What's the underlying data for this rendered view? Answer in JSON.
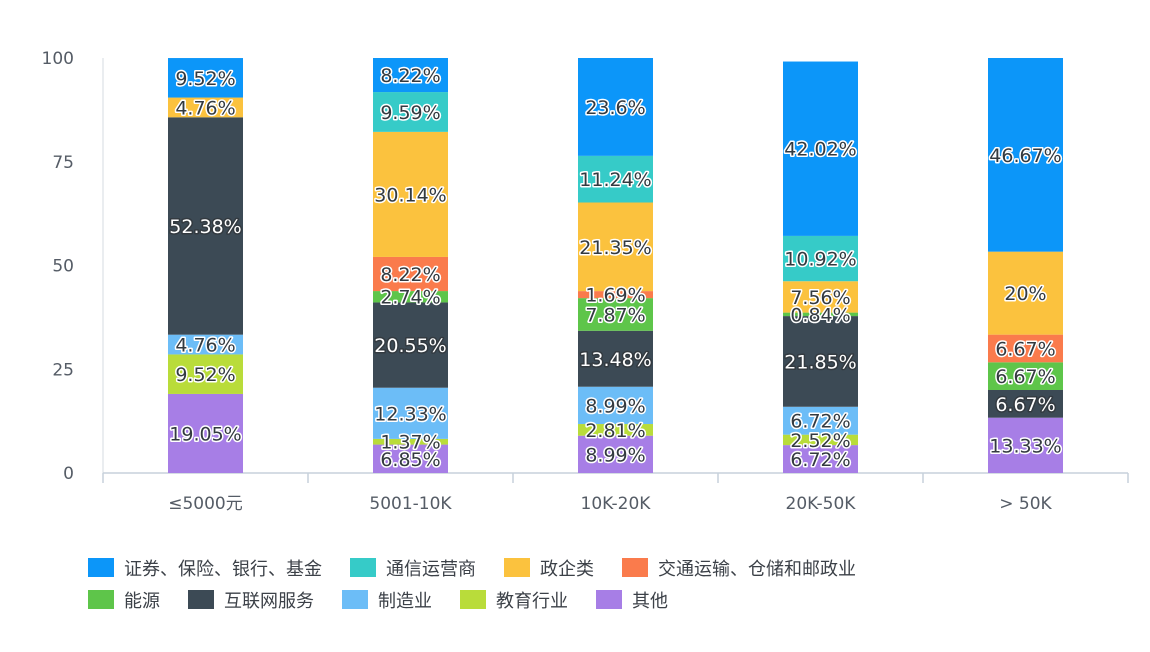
{
  "chart_data": {
    "type": "bar",
    "stacked": true,
    "categories": [
      "≤5000元",
      "5001-10K",
      "10K-20K",
      "20K-50K",
      "> 50K"
    ],
    "ylim": [
      0,
      100
    ],
    "yticks": [
      0,
      25,
      50,
      75,
      100
    ],
    "grid": false,
    "legend_position": "bottom",
    "series": [
      {
        "name": "其他",
        "color": "#a77ee6",
        "values": [
          19.05,
          6.85,
          8.99,
          6.72,
          13.33
        ],
        "labels": [
          "19.05%",
          "6.85%",
          "8.99%",
          "6.72%",
          "13.33%"
        ]
      },
      {
        "name": "教育行业",
        "color": "#b9dc3a",
        "values": [
          9.52,
          1.37,
          2.81,
          2.52,
          0
        ],
        "labels": [
          "9.52%",
          "1.37%",
          "2.81%",
          "2.52%",
          ""
        ]
      },
      {
        "name": "制造业",
        "color": "#6cbdf7",
        "values": [
          4.76,
          12.33,
          8.99,
          6.72,
          0
        ],
        "labels": [
          "4.76%",
          "12.33%",
          "8.99%",
          "6.72%",
          ""
        ]
      },
      {
        "name": "互联网服务",
        "color": "#3c4a55",
        "dark": true,
        "values": [
          52.38,
          20.55,
          13.48,
          21.85,
          6.67
        ],
        "labels": [
          "52.38%",
          "20.55%",
          "13.48%",
          "21.85%",
          "6.67%"
        ]
      },
      {
        "name": "能源",
        "color": "#5ec54a",
        "values": [
          0,
          2.74,
          7.87,
          0.84,
          6.67
        ],
        "labels": [
          "",
          "2.74%",
          "7.87%",
          "0.84%",
          "6.67%"
        ]
      },
      {
        "name": "交通运输、仓储和邮政业",
        "color": "#fa7b4c",
        "values": [
          0,
          8.22,
          1.69,
          0,
          6.67
        ],
        "labels": [
          "",
          "8.22%",
          "1.69%",
          "",
          "6.67%"
        ]
      },
      {
        "name": "政企类",
        "color": "#fbc23e",
        "values": [
          4.76,
          30.14,
          21.35,
          7.56,
          20.0
        ],
        "labels": [
          "4.76%",
          "30.14%",
          "21.35%",
          "7.56%",
          "20%"
        ]
      },
      {
        "name": "通信运营商",
        "color": "#36cbc8",
        "values": [
          0,
          9.59,
          11.24,
          10.92,
          0
        ],
        "labels": [
          "",
          "9.59%",
          "11.24%",
          "10.92%",
          ""
        ]
      },
      {
        "name": "证券、保险、银行、基金",
        "color": "#0c96f9",
        "values": [
          9.52,
          8.22,
          23.6,
          42.02,
          46.67
        ],
        "labels": [
          "9.52%",
          "8.22%",
          "23.6%",
          "42.02%",
          "46.67%"
        ]
      }
    ],
    "legend_order": [
      "证券、保险、银行、基金",
      "通信运营商",
      "政企类",
      "交通运输、仓储和邮政业",
      "能源",
      "互联网服务",
      "制造业",
      "教育行业",
      "其他"
    ]
  }
}
